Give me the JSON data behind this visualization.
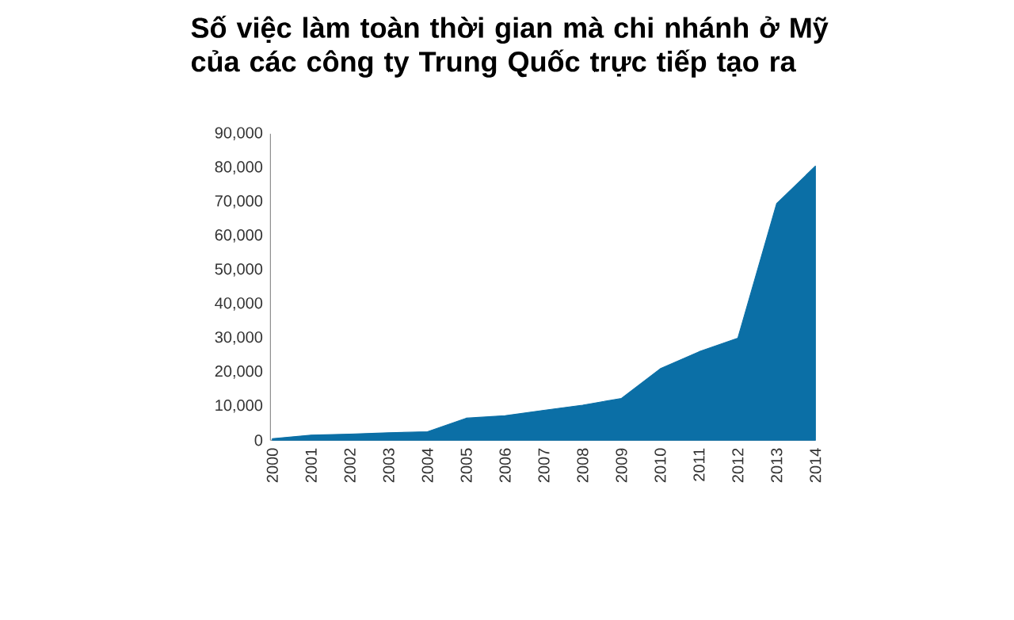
{
  "chart_data": {
    "type": "area",
    "title": "Số việc làm toàn thời gian mà chi nhánh ở Mỹ\ncủa các công ty Trung Quốc trực tiếp tạo ra",
    "categories": [
      "2000",
      "2001",
      "2002",
      "2003",
      "2004",
      "2005",
      "2006",
      "2007",
      "2008",
      "2009",
      "2010",
      "2011",
      "2012",
      "2013",
      "2014"
    ],
    "series": [
      {
        "color": "#0b6fa6",
        "values": [
          500,
          1500,
          1800,
          2200,
          2500,
          6500,
          7200,
          8800,
          10300,
          12300,
          21000,
          26000,
          30000,
          69500,
          80500
        ]
      }
    ],
    "ylim": [
      0,
      90000
    ],
    "yticks": [
      {
        "value": 0,
        "label": "0"
      },
      {
        "value": 10000,
        "label": "10,000"
      },
      {
        "value": 20000,
        "label": "20,000"
      },
      {
        "value": 30000,
        "label": "30,000"
      },
      {
        "value": 40000,
        "label": "40,000"
      },
      {
        "value": 50000,
        "label": "50,000"
      },
      {
        "value": 60000,
        "label": "60,000"
      },
      {
        "value": 70000,
        "label": "70,000"
      },
      {
        "value": 80000,
        "label": "80,000"
      },
      {
        "value": 90000,
        "label": "90,000"
      }
    ],
    "grid": false
  }
}
